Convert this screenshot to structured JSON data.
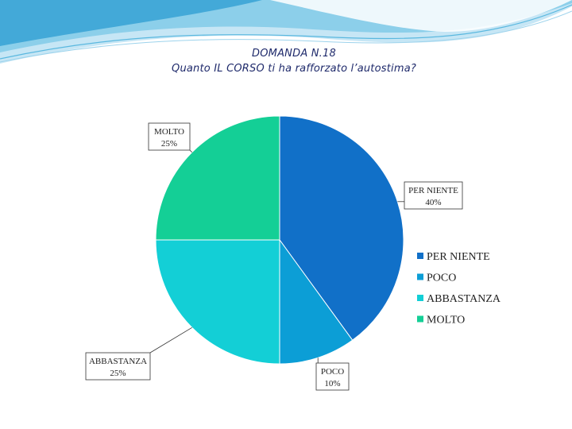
{
  "title": {
    "line1": "DOMANDA N.18",
    "line2": "Quanto IL CORSO ti ha rafforzato l’autostima?"
  },
  "chart_data": {
    "type": "pie",
    "title": "DOMANDA N.18",
    "subtitle": "Quanto IL CORSO ti ha rafforzato l’autostima?",
    "categories": [
      "PER NIENTE",
      "POCO",
      "ABBASTANZA",
      "MOLTO"
    ],
    "values": [
      40,
      10,
      25,
      25
    ],
    "value_labels": [
      "40%",
      "10%",
      "25%",
      "25%"
    ],
    "colors": [
      "#1170c8",
      "#0c9ed6",
      "#13cfd6",
      "#14cf96"
    ],
    "legend": {
      "position": "right",
      "entries": [
        "PER NIENTE",
        "POCO",
        "ABBASTANZA",
        "MOLTO"
      ]
    },
    "start_angle": "12 o'clock, clockwise"
  }
}
